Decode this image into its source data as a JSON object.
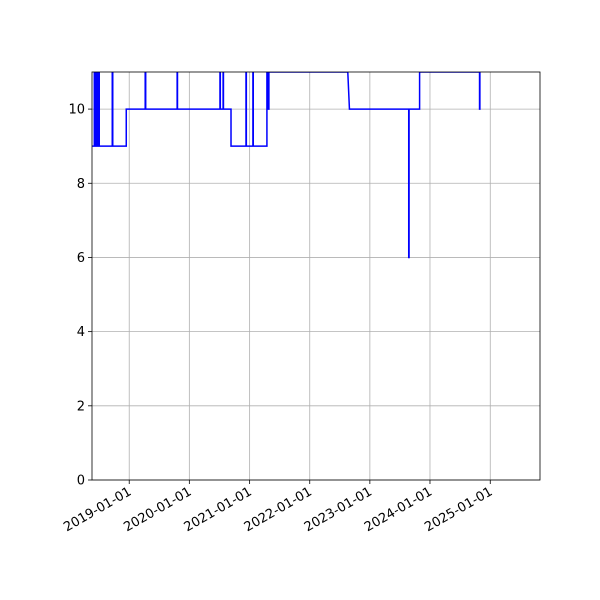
{
  "chart_data": {
    "type": "line",
    "x": [
      "2018-05-22",
      "2018-06-03",
      "2018-06-03",
      "2018-06-09",
      "2018-06-09",
      "2018-06-15",
      "2018-06-15",
      "2018-06-21",
      "2018-06-21",
      "2018-06-27",
      "2018-06-27",
      "2018-07-03",
      "2018-07-03",
      "2018-09-20",
      "2018-09-20",
      "2018-09-23",
      "2018-09-23",
      "2018-12-14",
      "2018-12-14",
      "2019-04-08",
      "2019-04-08",
      "2019-04-11",
      "2019-04-11",
      "2019-10-19",
      "2019-10-19",
      "2019-10-21",
      "2019-10-21",
      "2020-07-05",
      "2020-07-05",
      "2020-07-07",
      "2020-07-07",
      "2020-07-24",
      "2020-07-24",
      "2020-07-26",
      "2020-07-26",
      "2020-09-10",
      "2020-09-10",
      "2020-12-10",
      "2020-12-10",
      "2020-12-12",
      "2020-12-12",
      "2021-01-21",
      "2021-01-21",
      "2021-01-23",
      "2021-01-23",
      "2021-04-16",
      "2021-04-16",
      "2021-04-22",
      "2021-04-22",
      "2021-04-28",
      "2021-04-28",
      "2022-08-20",
      "2022-08-30",
      "2023-08-25",
      "2023-08-25",
      "2023-08-27",
      "2023-08-27",
      "2023-10-30",
      "2023-10-30",
      "2024-10-28",
      "2024-10-28",
      "2024-10-30",
      "2024-10-30",
      "2024-11-01"
    ],
    "series": [
      {
        "color": "#0000ff",
        "values": [
          9,
          9,
          11,
          11,
          9,
          9,
          11,
          11,
          9,
          9,
          11,
          11,
          9,
          9,
          11,
          11,
          9,
          9,
          10,
          10,
          11,
          11,
          10,
          10,
          11,
          11,
          10,
          10,
          11,
          11,
          10,
          10,
          11,
          11,
          10,
          10,
          9,
          9,
          11,
          11,
          9,
          9,
          11,
          11,
          9,
          9,
          11,
          11,
          10,
          10,
          11,
          11,
          10,
          10,
          6,
          6,
          10,
          10,
          11,
          11,
          10,
          10,
          11,
          11
        ]
      }
    ],
    "xlim": [
      "2018-05-20",
      "2025-10-30"
    ],
    "xticks": [
      "2019-01-01",
      "2020-01-01",
      "2021-01-01",
      "2022-01-01",
      "2023-01-01",
      "2024-01-01",
      "2025-01-01"
    ],
    "ylim": [
      0,
      11
    ],
    "yticks": [
      0,
      2,
      4,
      6,
      8,
      10
    ],
    "grid": true
  }
}
